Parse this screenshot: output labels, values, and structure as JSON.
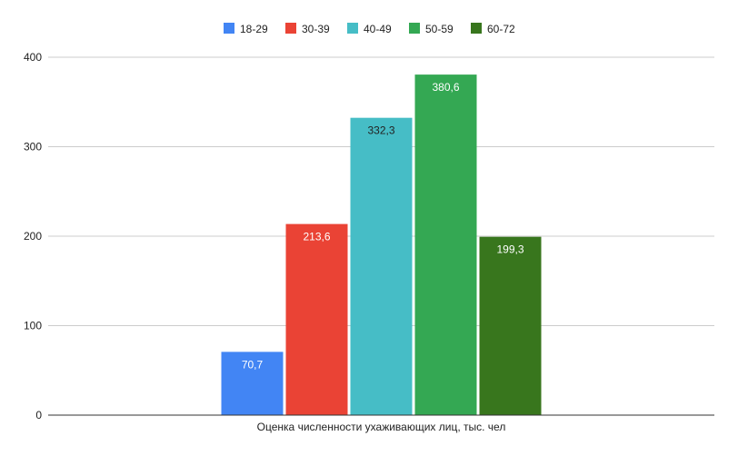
{
  "chart_data": {
    "type": "bar",
    "categories": [
      "Оценка численности ухаживающих лиц, тыс. чел"
    ],
    "series": [
      {
        "name": "18-29",
        "values": [
          70.7
        ],
        "label": "70,7",
        "color": "#4285f4",
        "label_color": "#ffffff"
      },
      {
        "name": "30-39",
        "values": [
          213.6
        ],
        "label": "213,6",
        "color": "#ea4335",
        "label_color": "#ffffff"
      },
      {
        "name": "40-49",
        "values": [
          332.3
        ],
        "label": "332,3",
        "color": "#46bdc6",
        "label_color": "#222222"
      },
      {
        "name": "50-59",
        "values": [
          380.6
        ],
        "label": "380,6",
        "color": "#34a853",
        "label_color": "#ffffff"
      },
      {
        "name": "60-72",
        "values": [
          199.3
        ],
        "label": "199,3",
        "color": "#38761d",
        "label_color": "#ffffff"
      }
    ],
    "ylim": [
      0,
      400
    ],
    "yticks": [
      "0",
      "100",
      "200",
      "300",
      "400"
    ],
    "grid": true,
    "legend_position": "top-center",
    "title": "",
    "xlabel": "",
    "ylabel": ""
  }
}
